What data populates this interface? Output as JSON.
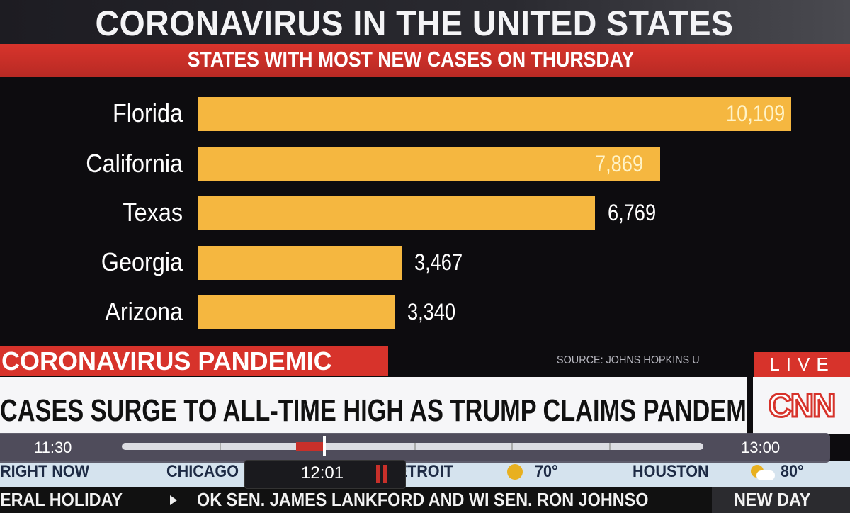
{
  "header": {
    "title": "CORONAVIRUS IN THE UNITED STATES",
    "subtitle": "STATES WITH MOST NEW CASES ON THURSDAY"
  },
  "chart_data": {
    "type": "bar",
    "orientation": "horizontal",
    "title": "STATES WITH MOST NEW CASES ON THURSDAY",
    "categories": [
      "Florida",
      "California",
      "Texas",
      "Georgia",
      "Arizona"
    ],
    "values": [
      10109,
      7869,
      6769,
      3467,
      3340
    ],
    "value_labels": [
      "10,109",
      "7,869",
      "6,769",
      "3,467",
      "3,340"
    ],
    "bar_color": "#f5b740",
    "grid": false
  },
  "lower_third": {
    "topic": "CORONAVIRUS PANDEMIC",
    "source": "SOURCE: JOHNS HOPKINS U",
    "live": "LIVE",
    "headline": "CASES SURGE TO ALL-TIME HIGH AS TRUMP CLAIMS PANDEMIC \"HANDLED\"",
    "logo": "CNN"
  },
  "player": {
    "start": "11:30",
    "end": "13:00",
    "current": "12:01",
    "progress_fraction": 0.35
  },
  "ticker": {
    "label": "RIGHT NOW",
    "cities": [
      {
        "name": "CHICAGO"
      },
      {
        "name": "DETROIT",
        "temp": "70°",
        "icon": "sun-icon"
      },
      {
        "name": "HOUSTON",
        "temp": "80°",
        "icon": "partly-cloudy-icon"
      }
    ]
  },
  "crawl": {
    "text1": "ERAL HOLIDAY",
    "text2": "OK SEN. JAMES LANKFORD AND WI SEN. RON JOHNSO",
    "show": "NEW DAY"
  }
}
